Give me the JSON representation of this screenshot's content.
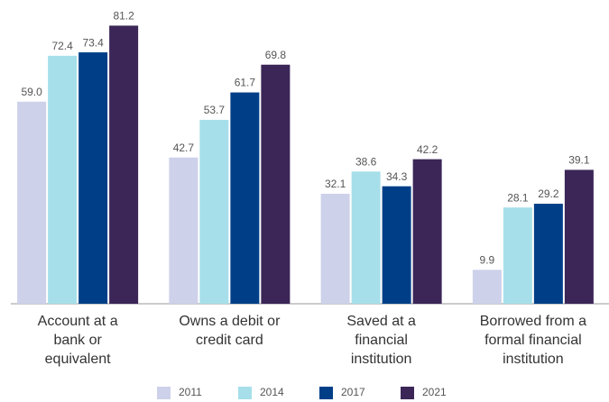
{
  "chart_data": {
    "type": "bar",
    "categories": [
      "Account at a bank or equivalent",
      "Owns a debit or credit card",
      "Saved at a financial institution",
      "Borrowed from a formal financial institution"
    ],
    "series": [
      {
        "name": "2011",
        "color": "#cdd1ea",
        "values": [
          59.0,
          42.7,
          32.1,
          9.9
        ],
        "value_labels": [
          "59.0",
          "42.7",
          "32.1",
          "9.9"
        ]
      },
      {
        "name": "2014",
        "color": "#a6dfea",
        "values": [
          72.4,
          53.7,
          38.6,
          28.1
        ],
        "value_labels": [
          "72.4",
          "53.7",
          "38.6",
          "28.1"
        ]
      },
      {
        "name": "2017",
        "color": "#003f88",
        "values": [
          73.4,
          61.7,
          34.3,
          29.2
        ],
        "value_labels": [
          "73.4",
          "61.7",
          "34.3",
          "29.2"
        ]
      },
      {
        "name": "2021",
        "color": "#3b2657",
        "values": [
          81.2,
          69.8,
          42.2,
          39.1
        ],
        "value_labels": [
          "81.2",
          "69.8",
          "42.2",
          "39.1"
        ]
      }
    ],
    "ylim": [
      0,
      85
    ],
    "legend": "bottom"
  }
}
